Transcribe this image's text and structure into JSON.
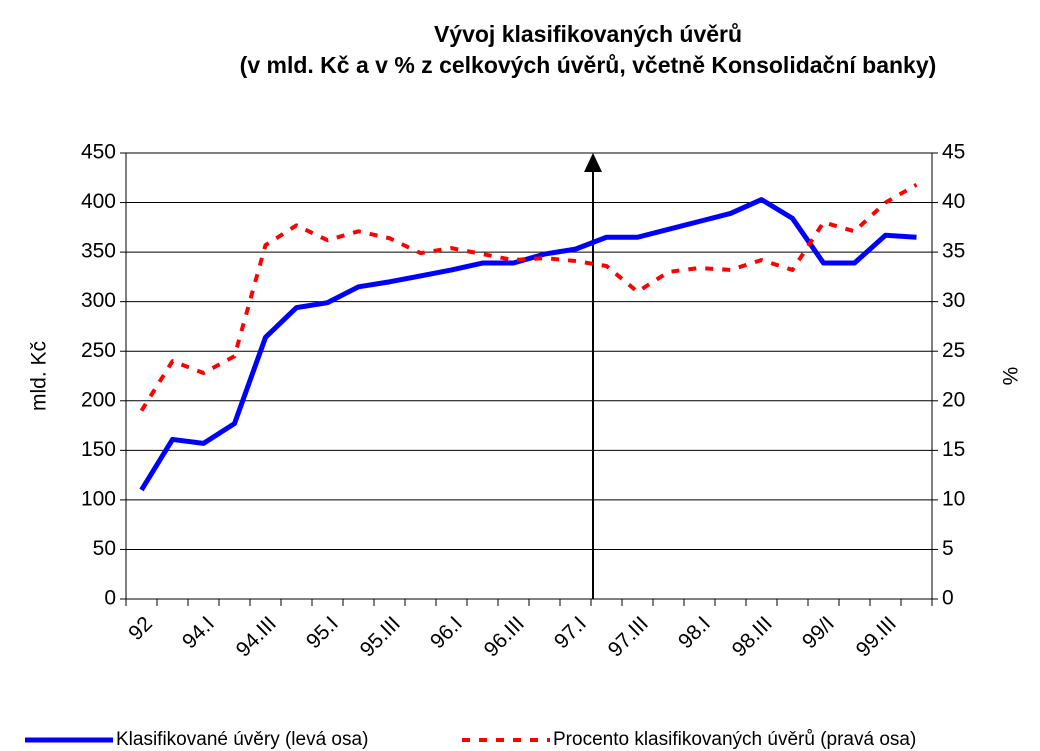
{
  "chart_data": {
    "type": "line",
    "title": "Vývoj klasifikovaných úvěrů",
    "subtitle": "(v mld. Kč a v % z celkových úvěrů, včetně Konsolidační banky)",
    "y_label": "mld. Kč",
    "y2_label": "%",
    "categories": [
      "92",
      null,
      "94.I",
      null,
      "94.III",
      null,
      "95.I",
      null,
      "95.III",
      null,
      "96.I",
      null,
      "96.III",
      null,
      "97.I",
      null,
      "97.III",
      null,
      "98.I",
      null,
      "98.III",
      null,
      "99/I",
      null,
      "99.III",
      null
    ],
    "series": [
      {
        "name": "Klasifikované úvěry (levá osa)",
        "color": "#0000ff",
        "style": "solid",
        "values": [
          110,
          161,
          157,
          177,
          264,
          294,
          299,
          315,
          320,
          326,
          332,
          339,
          339,
          348,
          353,
          365,
          365,
          373,
          381,
          389,
          403,
          384,
          339,
          339,
          367,
          365
        ]
      },
      {
        "name": "Procento klasifikovaných úvěrů (pravá osa)",
        "color": "#ff0000",
        "style": "dashed",
        "axis": "y2",
        "values": [
          19,
          24,
          22.8,
          24.5,
          35.7,
          37.7,
          36.2,
          37.1,
          36.4,
          34.9,
          35.4,
          34.8,
          34.2,
          34.4,
          34.1,
          33.6,
          31,
          33,
          33.4,
          33.2,
          34.2,
          33.2,
          38,
          37.1,
          40,
          41.8
        ]
      }
    ],
    "ylim": [
      0,
      450
    ],
    "yticks": [
      0,
      50,
      100,
      150,
      200,
      250,
      300,
      350,
      400,
      450
    ],
    "y2lim": [
      0,
      45
    ],
    "y2ticks": [
      0,
      5,
      10,
      15,
      20,
      25,
      30,
      35,
      40,
      45
    ],
    "grid": true
  }
}
